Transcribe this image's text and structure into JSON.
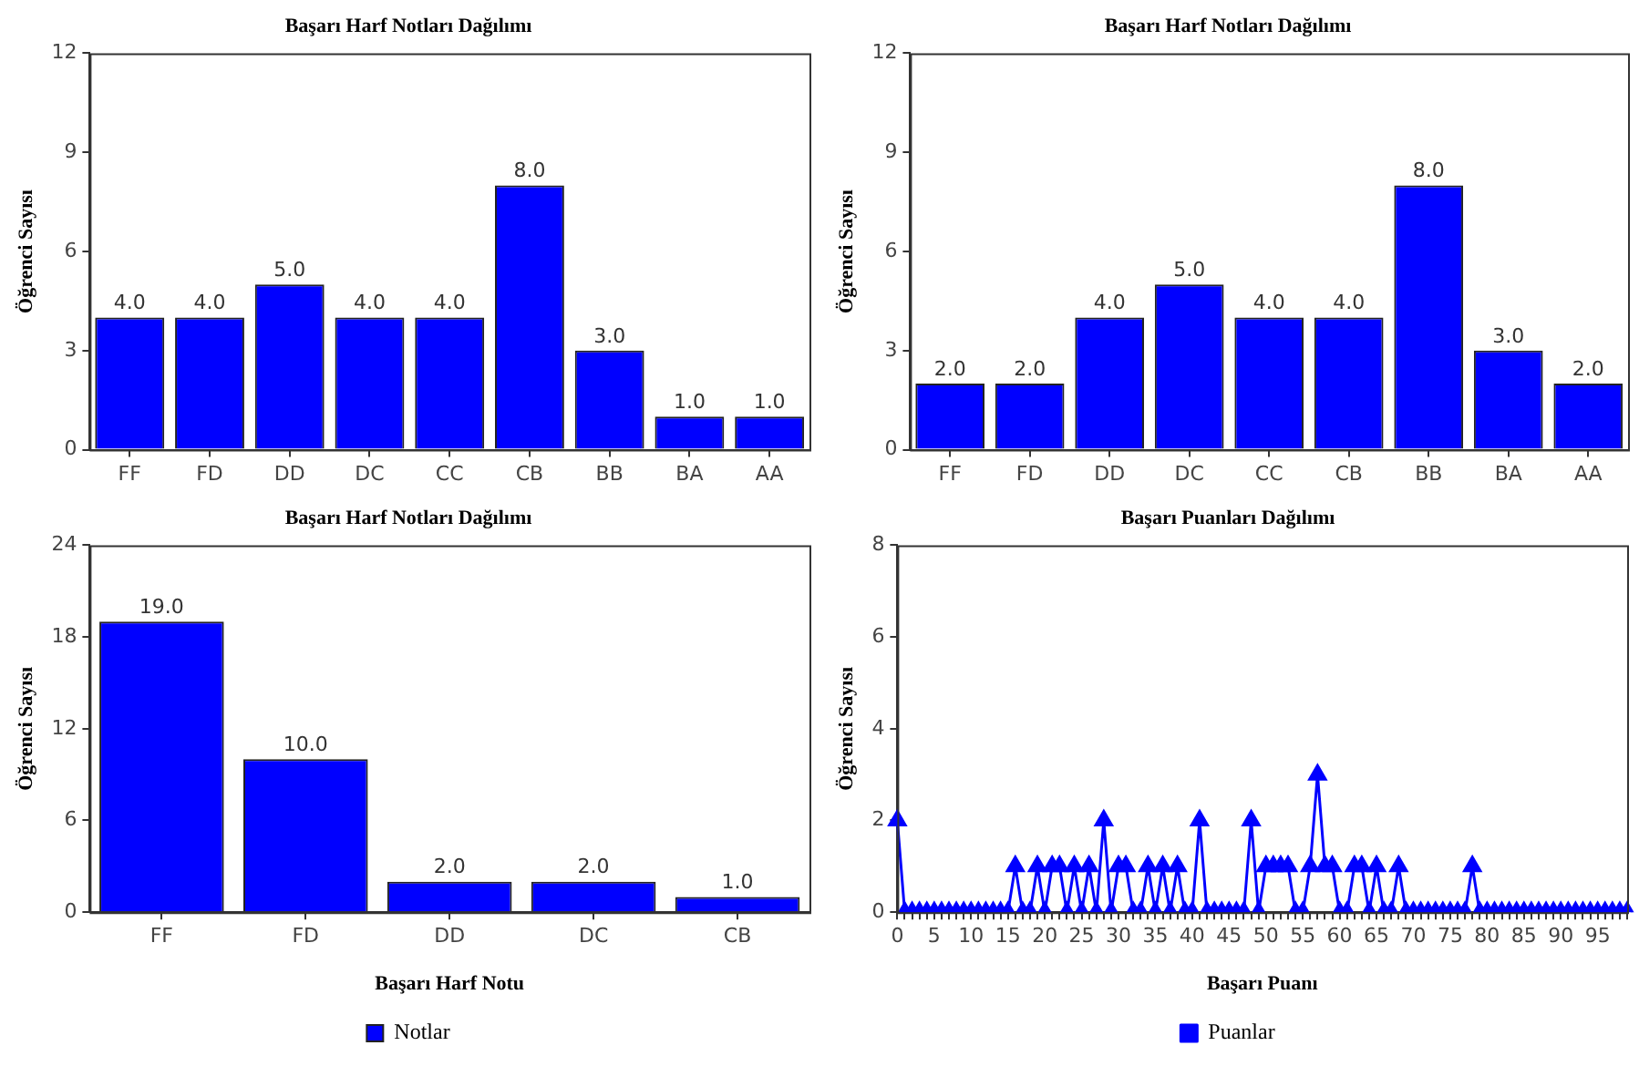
{
  "chart_data": [
    {
      "type": "bar",
      "title": "Başarı Harf Notları Dağılımı",
      "ylabel": "Öğrenci Sayısı",
      "categories": [
        "FF",
        "FD",
        "DD",
        "DC",
        "CC",
        "CB",
        "BB",
        "BA",
        "AA"
      ],
      "values": [
        4,
        4,
        5,
        4,
        4,
        8,
        3,
        1,
        1
      ],
      "color": "#0000ff",
      "value_labels": [
        "4.0",
        "4.0",
        "5.0",
        "4.0",
        "4.0",
        "8.0",
        "3.0",
        "1.0",
        "1.0"
      ],
      "ylim": [
        0,
        12
      ],
      "yticks": [
        0,
        3,
        6,
        9,
        12
      ],
      "grid": false
    },
    {
      "type": "bar",
      "title": "Başarı Harf Notları Dağılımı",
      "ylabel": "Öğrenci Sayısı",
      "categories": [
        "FF",
        "FD",
        "DD",
        "DC",
        "CC",
        "CB",
        "BB",
        "BA",
        "AA"
      ],
      "values": [
        2,
        2,
        4,
        5,
        4,
        4,
        8,
        3,
        2
      ],
      "color": "#0000ff",
      "value_labels": [
        "2.0",
        "2.0",
        "4.0",
        "5.0",
        "4.0",
        "4.0",
        "8.0",
        "3.0",
        "2.0"
      ],
      "ylim": [
        0,
        12
      ],
      "yticks": [
        0,
        3,
        6,
        9,
        12
      ],
      "grid": false
    },
    {
      "type": "bar",
      "title": "Başarı Harf Notları Dağılımı",
      "xlabel": "Başarı Harf Notu",
      "ylabel": "Öğrenci Sayısı",
      "categories": [
        "FF",
        "FD",
        "DD",
        "DC",
        "CB"
      ],
      "series": [
        {
          "name": "Notlar",
          "color": "#0000ff",
          "values": [
            19,
            10,
            2,
            2,
            1
          ],
          "value_labels": [
            "19.0",
            "10.0",
            "2.0",
            "2.0",
            "1.0"
          ]
        }
      ],
      "ylim": [
        0,
        24
      ],
      "yticks": [
        0,
        6,
        12,
        18,
        24
      ],
      "grid": false,
      "legend": "bottom"
    },
    {
      "type": "line",
      "title": "Başarı Puanları Dağılımı",
      "xlabel": "Başarı Puanı",
      "ylabel": "Öğrenci Sayısı",
      "categories": [
        "0",
        null,
        null,
        null,
        null,
        "5",
        null,
        null,
        null,
        null,
        "10",
        null,
        null,
        null,
        null,
        "15",
        null,
        null,
        null,
        null,
        "20",
        null,
        null,
        null,
        null,
        "25",
        null,
        null,
        null,
        null,
        "30",
        null,
        null,
        null,
        null,
        "35",
        null,
        null,
        null,
        null,
        "40",
        null,
        null,
        null,
        null,
        "45",
        null,
        null,
        null,
        null,
        "50",
        null,
        null,
        null,
        null,
        "55",
        null,
        null,
        null,
        null,
        "60",
        null,
        null,
        null,
        null,
        "65",
        null,
        null,
        null,
        null,
        "70",
        null,
        null,
        null,
        null,
        "75",
        null,
        null,
        null,
        null,
        "80",
        null,
        null,
        null,
        null,
        "85",
        null,
        null,
        null,
        null,
        "90",
        null,
        null,
        null,
        null,
        "95",
        null,
        null,
        null,
        null
      ],
      "series": [
        {
          "name": "Puanlar",
          "color": "#0000ff",
          "values": [
            2,
            0,
            0,
            0,
            0,
            0,
            0,
            0,
            0,
            0,
            0,
            0,
            0,
            0,
            0,
            0,
            1,
            0,
            0,
            1,
            0,
            1,
            1,
            0,
            1,
            0,
            1,
            0,
            2,
            0,
            1,
            1,
            0,
            0,
            1,
            0,
            1,
            0,
            1,
            0,
            0,
            2,
            0,
            0,
            0,
            0,
            0,
            0,
            2,
            0,
            1,
            1,
            1,
            1,
            0,
            0,
            1,
            3,
            1,
            1,
            0,
            0,
            1,
            1,
            0,
            1,
            0,
            0,
            1,
            0,
            0,
            0,
            0,
            0,
            0,
            0,
            0,
            0,
            1,
            0,
            0,
            0,
            0,
            0,
            0,
            0,
            0,
            0,
            0,
            0,
            0,
            0,
            0,
            0,
            0,
            0,
            0,
            0,
            0,
            0
          ]
        }
      ],
      "ylim": [
        0,
        8
      ],
      "yticks": [
        0,
        2,
        4,
        6,
        8
      ],
      "grid": false,
      "legend": "bottom",
      "marker": "triangle",
      "line_style": "solid"
    }
  ]
}
